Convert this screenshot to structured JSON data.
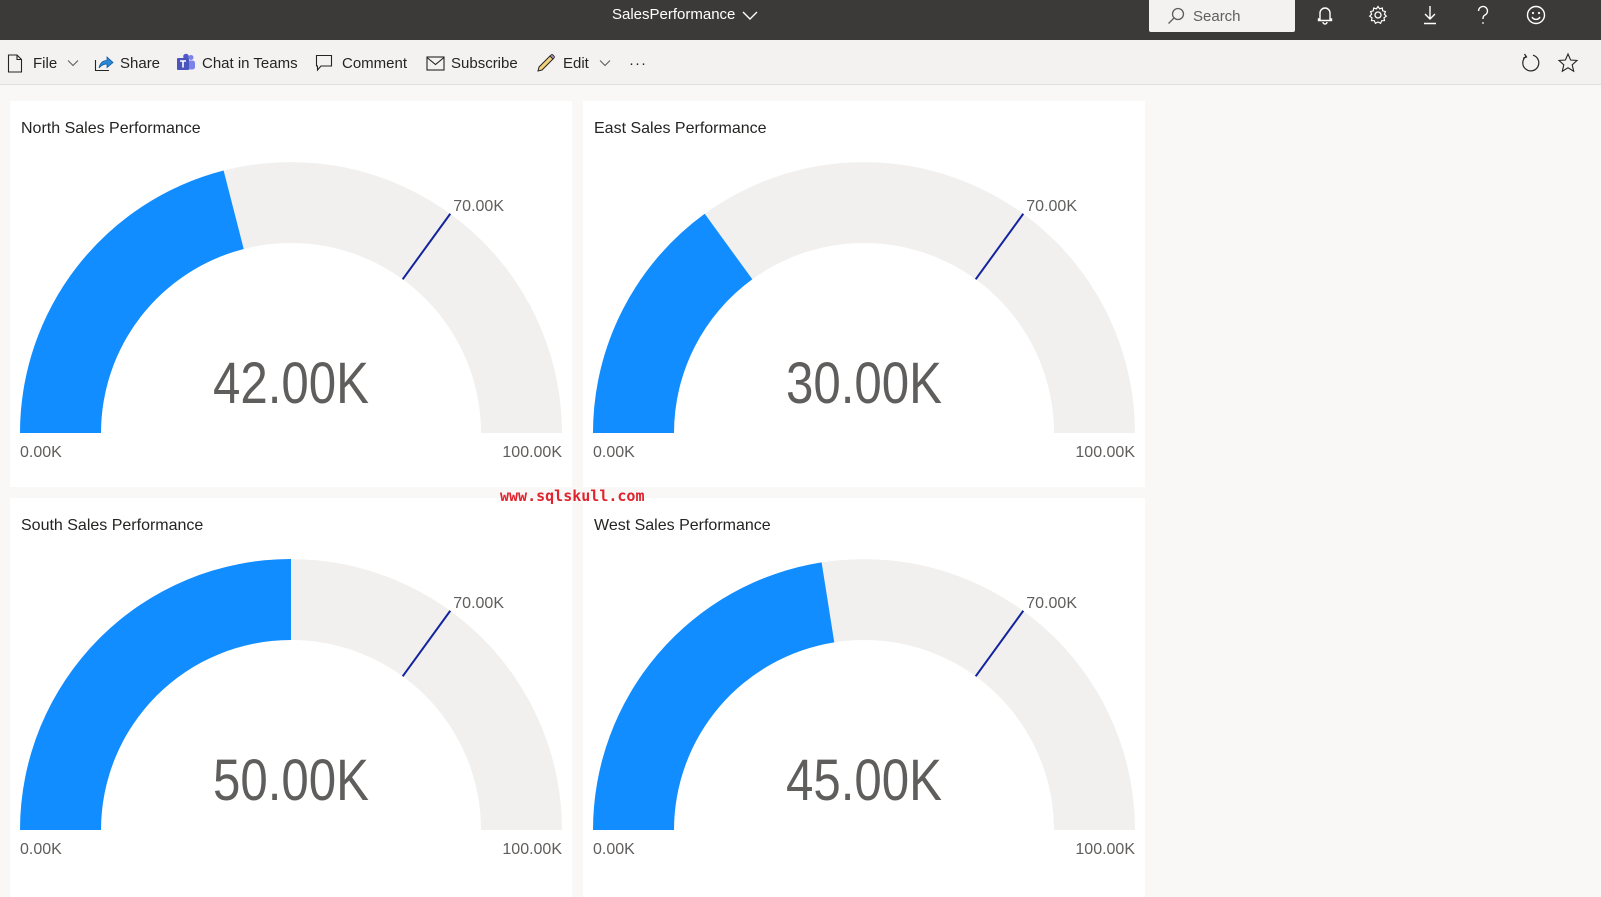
{
  "header": {
    "report_title": "SalesPerformance",
    "search_placeholder": "Search",
    "icons": [
      "bell-icon",
      "gear-icon",
      "download-icon",
      "help-icon",
      "smiley-feedback-icon"
    ]
  },
  "toolbar": {
    "file_label": "File",
    "share_label": "Share",
    "chat_label": "Chat in Teams",
    "comment_label": "Comment",
    "subscribe_label": "Subscribe",
    "edit_label": "Edit",
    "more_label": "···",
    "right_icons": [
      "refresh-icon",
      "favorite-star-icon"
    ]
  },
  "watermark": "www.sqlskull.com",
  "colors": {
    "fill": "#118dff",
    "track": "#f1f0ef",
    "target": "#12239e",
    "label": "#605e5c",
    "value_text": "#605e5c"
  },
  "chart_data": [
    {
      "type": "gauge",
      "title": "North Sales Performance",
      "value": 42000,
      "value_label": "42.00K",
      "min": 0,
      "min_label": "0.00K",
      "max": 100000,
      "max_label": "100.00K",
      "target": 70000,
      "target_label": "70.00K"
    },
    {
      "type": "gauge",
      "title": "East Sales Performance",
      "value": 30000,
      "value_label": "30.00K",
      "min": 0,
      "min_label": "0.00K",
      "max": 100000,
      "max_label": "100.00K",
      "target": 70000,
      "target_label": "70.00K"
    },
    {
      "type": "gauge",
      "title": "South Sales Performance",
      "value": 50000,
      "value_label": "50.00K",
      "min": 0,
      "min_label": "0.00K",
      "max": 100000,
      "max_label": "100.00K",
      "target": 70000,
      "target_label": "70.00K"
    },
    {
      "type": "gauge",
      "title": "West Sales Performance",
      "value": 45000,
      "value_label": "45.00K",
      "min": 0,
      "min_label": "0.00K",
      "max": 100000,
      "max_label": "100.00K",
      "target": 70000,
      "target_label": "70.00K"
    }
  ]
}
